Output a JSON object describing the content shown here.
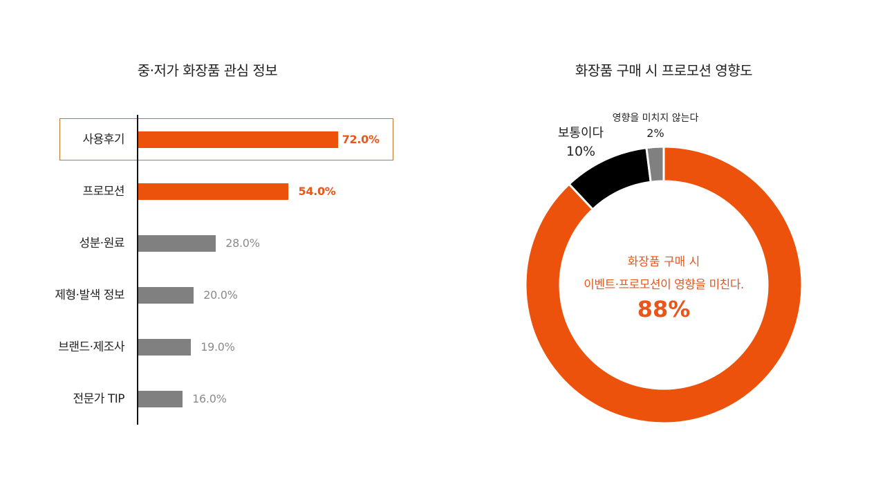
{
  "colors": {
    "accent": "#EC520B",
    "gray_bar": "#808080",
    "black_slice": "#000000",
    "gray_slice": "#808080",
    "highlight_border": "#C8712A",
    "value_accent": "#E8561A",
    "value_gray": "#8A8A8A"
  },
  "bar_chart": {
    "title": "중·저가 화장품 관심 정보",
    "highlighted_row": "사용후기"
  },
  "donut_chart": {
    "title": "화장품 구매 시 프로모션 영향도",
    "center_line1": "화장품 구매 시",
    "center_line2": "이벤트·프로모션이 영향을 미친다.",
    "center_value": "88%",
    "labels": {
      "neutral_name": "보통이다",
      "neutral_value": "10%",
      "no_influence_name": "영향을 미치지 않는다",
      "no_influence_value": "2%"
    }
  },
  "chart_data": [
    {
      "type": "bar",
      "orientation": "horizontal",
      "title": "중·저가 화장품 관심 정보",
      "categories": [
        "사용후기",
        "프로모션",
        "성분·원료",
        "제형·발색 정보",
        "브랜드·제조사",
        "전문가 TIP"
      ],
      "values": [
        72.0,
        54.0,
        28.0,
        20.0,
        19.0,
        16.0
      ],
      "value_labels": [
        "72.0%",
        "54.0%",
        "28.0%",
        "20.0%",
        "19.0%",
        "16.0%"
      ],
      "bar_colors": [
        "#EC520B",
        "#EC520B",
        "#808080",
        "#808080",
        "#808080",
        "#808080"
      ],
      "xlabel": "",
      "ylabel": "",
      "grid": false,
      "highlight": "사용후기"
    },
    {
      "type": "pie",
      "donut": true,
      "title": "화장품 구매 시 프로모션 영향도",
      "categories": [
        "영향을 미친다",
        "보통이다",
        "영향을 미치지 않는다"
      ],
      "values": [
        88,
        10,
        2
      ],
      "value_labels": [
        "88%",
        "10%",
        "2%"
      ],
      "colors": [
        "#EC520B",
        "#000000",
        "#808080"
      ],
      "center_annotation": "화장품 구매 시 이벤트·프로모션이 영향을 미친다. 88%"
    }
  ]
}
